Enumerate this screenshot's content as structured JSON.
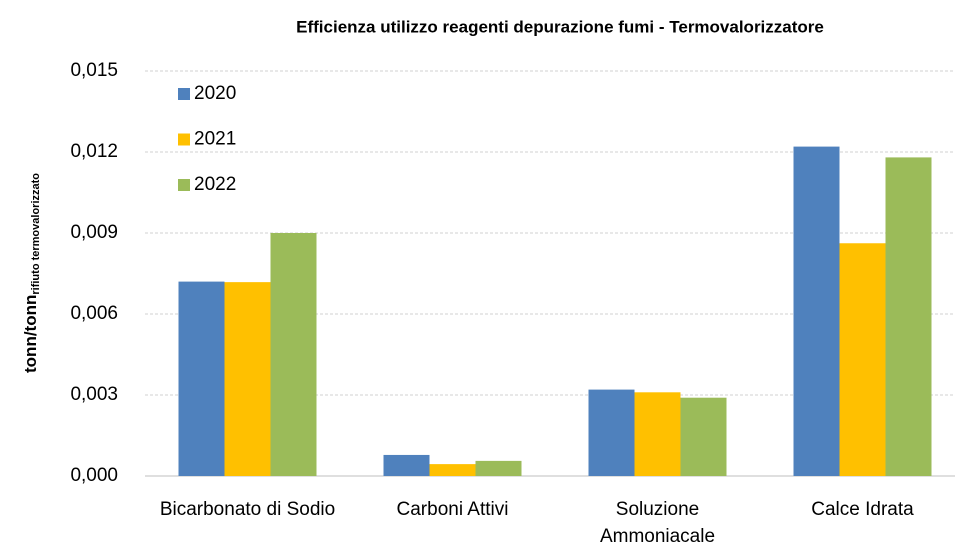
{
  "chart_data": {
    "type": "bar",
    "title": "Efficienza utilizzo reagenti depurazione fumi  - Termovalorizzatore",
    "ylabel": "tonn/tonn",
    "ylabel_subscript": "rifiuto termovalorizzato",
    "categories": [
      "Bicarbonato di Sodio",
      "Carboni Attivi",
      "Soluzione Ammoniacale",
      "Calce Idrata"
    ],
    "series": [
      {
        "name": "2020",
        "color": "#4f81bd",
        "values": [
          0.0072,
          0.00078,
          0.0032,
          0.0122
        ]
      },
      {
        "name": "2021",
        "color": "#ffc000",
        "values": [
          0.00718,
          0.00044,
          0.0031,
          0.00862
        ]
      },
      {
        "name": "2022",
        "color": "#9bbb59",
        "values": [
          0.009,
          0.00056,
          0.0029,
          0.0118
        ]
      }
    ],
    "ylim": [
      0,
      0.015
    ],
    "yticks": [
      {
        "value": 0,
        "label": "0,000"
      },
      {
        "value": 0.003,
        "label": "0,003"
      },
      {
        "value": 0.006,
        "label": "0,006"
      },
      {
        "value": 0.009,
        "label": "0,009"
      },
      {
        "value": 0.012,
        "label": "0,012"
      },
      {
        "value": 0.015,
        "label": "0,015"
      }
    ],
    "grid": true,
    "legend": "upper left"
  }
}
